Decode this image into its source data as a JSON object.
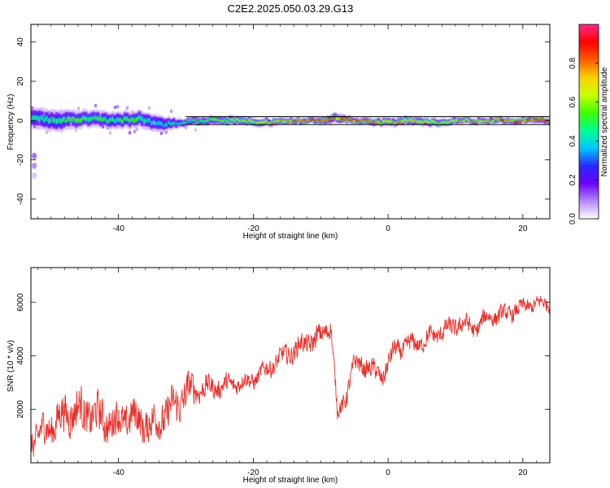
{
  "title": "C2E2.2025.050.03.29.G13",
  "colorbar": {
    "label": "Normalized spectral amplitude",
    "ticks": [
      "0.0",
      "0.2",
      "0.4",
      "0.6",
      "0.8"
    ],
    "tick_values": [
      0.0,
      0.2,
      0.4,
      0.6,
      0.8
    ],
    "range": [
      0,
      1
    ],
    "colormap": [
      "#ffffff",
      "#b388ff",
      "#6a00ff",
      "#2a28ff",
      "#00c8ff",
      "#00ff90",
      "#40ff00",
      "#c8ff00",
      "#ffd000",
      "#ff5a00",
      "#ff0000",
      "#ff2a8a"
    ]
  },
  "chart_data": [
    {
      "type": "heatmap",
      "xlabel": "Height of straight line (km)",
      "ylabel": "Frequency (Hz)",
      "xlim": [
        -53,
        24
      ],
      "ylim": [
        -50,
        49
      ],
      "x_ticks": [
        -40,
        -20,
        0,
        20
      ],
      "y_ticks": [
        40,
        20,
        0,
        -20,
        -40
      ],
      "x_tick_labels": [
        "-40",
        "-20",
        "0",
        "20"
      ],
      "y_tick_labels": [
        "40",
        "20",
        "0",
        "-20",
        "-40"
      ],
      "reference_lines_hz": [
        2,
        -2
      ],
      "ridge": {
        "x": [
          -53,
          -49,
          -45,
          -41,
          -37,
          -34,
          -31,
          -27,
          -23,
          -19,
          -15,
          -11,
          -8,
          -5,
          -1,
          3,
          7,
          11,
          15,
          19,
          24
        ],
        "frequency_hz": [
          1,
          0,
          1,
          0,
          1,
          -2,
          -1,
          0,
          0,
          -1,
          0,
          0,
          1,
          0,
          -1,
          0,
          -1,
          0,
          0,
          0,
          0
        ],
        "amplitude": [
          0.45,
          0.5,
          0.55,
          0.5,
          0.55,
          0.4,
          0.5,
          0.6,
          0.65,
          0.7,
          0.85,
          0.9,
          0.85,
          0.9,
          0.8,
          0.75,
          0.7,
          0.8,
          0.85,
          0.9,
          0.95
        ],
        "bandwidth_hz": [
          5,
          5,
          4,
          4,
          4,
          4,
          2,
          2,
          2,
          2,
          1.5,
          1.5,
          2.5,
          1.5,
          2,
          2,
          2,
          1.5,
          1.5,
          1.5,
          1.5
        ]
      },
      "outliers": [
        {
          "x": -52.5,
          "frequency_hz": -18,
          "amplitude": 0.12
        },
        {
          "x": -52.5,
          "frequency_hz": -23,
          "amplitude": 0.1
        },
        {
          "x": -52.5,
          "frequency_hz": -28,
          "amplitude": 0.05
        }
      ]
    },
    {
      "type": "line",
      "xlabel": "Height of straight line (km)",
      "ylabel": "SNR (10 * v/v)",
      "xlim": [
        -53,
        24
      ],
      "ylim": [
        0,
        7300
      ],
      "x_ticks": [
        -40,
        -20,
        0,
        20
      ],
      "y_ticks": [
        2000,
        4000,
        6000
      ],
      "x_tick_labels": [
        "-40",
        "-20",
        "0",
        "20"
      ],
      "y_tick_labels": [
        "2000",
        "4000",
        "6000"
      ],
      "series": [
        {
          "color": "#e8302a",
          "x": [
            -53,
            -50,
            -47,
            -44,
            -41,
            -38,
            -35,
            -32,
            -30,
            -28,
            -26,
            -24,
            -22,
            -20,
            -18,
            -16,
            -14,
            -12,
            -10,
            -8.5,
            -7.5,
            -6.5,
            -5,
            -3,
            -1,
            1,
            3,
            5,
            7,
            9,
            11,
            13,
            15,
            17,
            19,
            21,
            24
          ],
          "y": [
            800,
            1400,
            2000,
            1800,
            1500,
            1700,
            1400,
            2000,
            2600,
            2800,
            2800,
            2900,
            3000,
            3100,
            3500,
            3900,
            4200,
            4500,
            4700,
            5200,
            1800,
            2300,
            3700,
            3600,
            3200,
            4200,
            4400,
            4500,
            4800,
            5000,
            5200,
            5000,
            5500,
            5500,
            5700,
            5900,
            6000
          ],
          "amplitude": [
            700,
            900,
            1000,
            1000,
            900,
            900,
            900,
            900,
            900,
            600,
            500,
            450,
            450,
            400,
            450,
            450,
            500,
            500,
            550,
            500,
            400,
            500,
            500,
            450,
            500,
            500,
            450,
            450,
            450,
            450,
            450,
            450,
            450,
            400,
            400,
            350,
            350
          ]
        }
      ]
    }
  ]
}
